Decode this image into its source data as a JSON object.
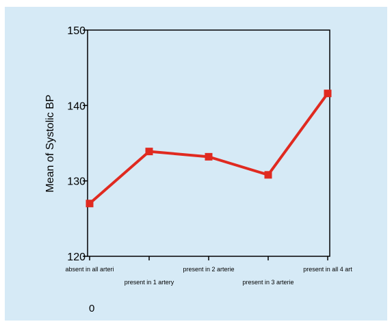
{
  "colors": {
    "background": "#d6eaf6",
    "series": "#e02a20",
    "axis": "#000000"
  },
  "chart_data": {
    "type": "line",
    "categories": [
      "absent in all arteri",
      "present in 1 artery",
      "present in 2 arterie",
      "present in 3 arterie",
      "present in all 4 art"
    ],
    "series": [
      {
        "values": [
          127,
          133.9,
          133.2,
          130.8,
          141.6
        ]
      }
    ],
    "ylabel": "Mean of Systolic BP",
    "xlabel": "",
    "ylim": [
      120,
      150
    ],
    "yticks": [
      120,
      130,
      140,
      150
    ],
    "grid": false,
    "footnote": "0"
  }
}
